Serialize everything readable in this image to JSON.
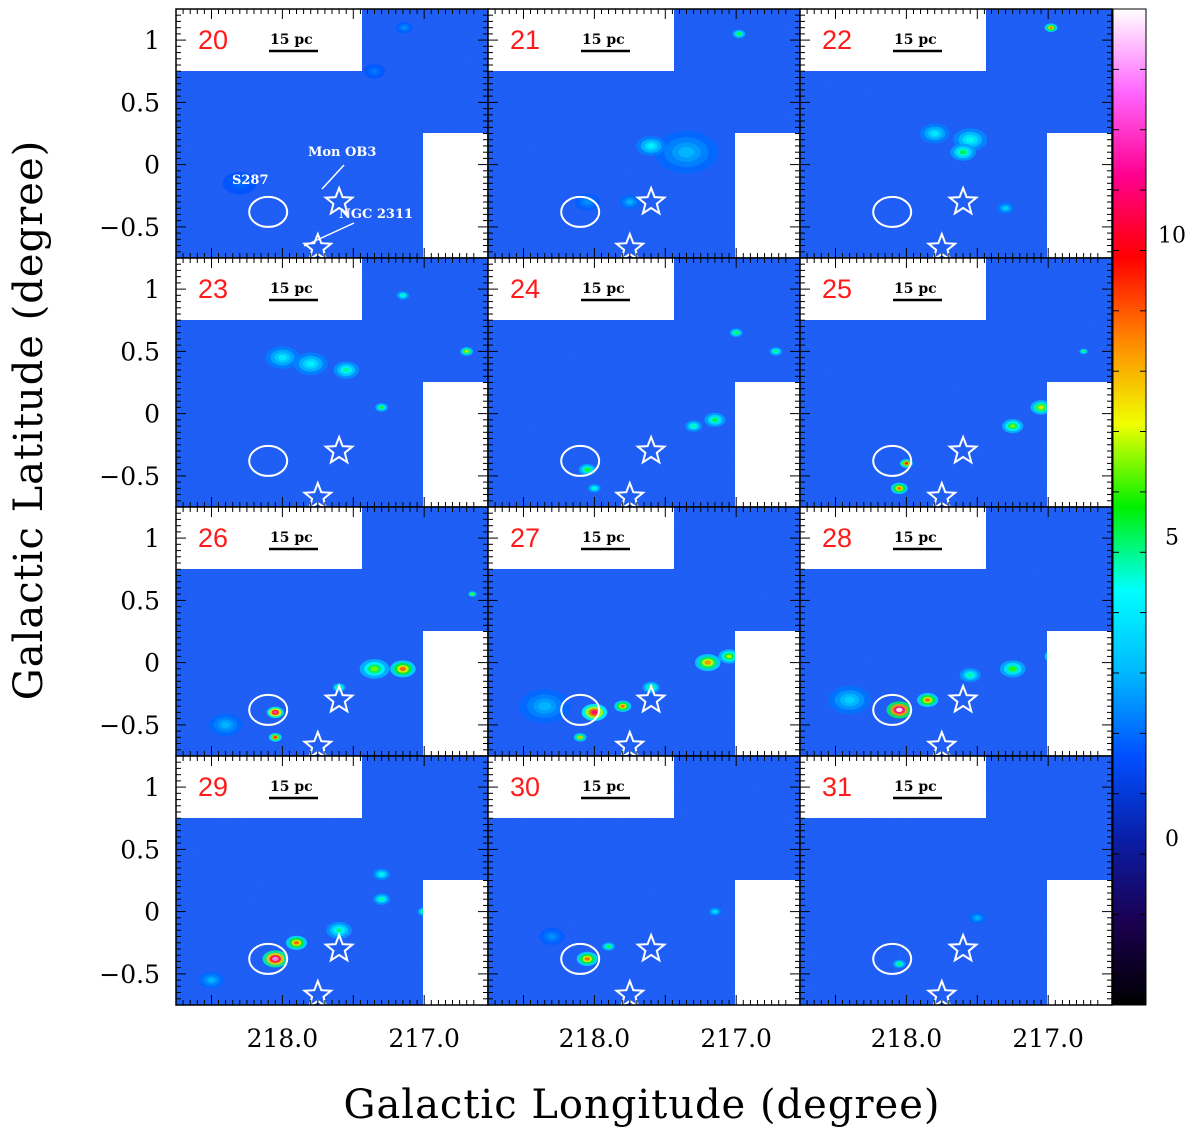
{
  "chart_data": {
    "type": "heatmap",
    "description_type": "channel-map grid (4x3 panels)",
    "xlabel": "Galactic Longitude (degree)",
    "ylabel": "Galactic Latitude (degree)",
    "xlim": [
      218.75,
      216.55
    ],
    "ylim": [
      -0.75,
      1.25
    ],
    "x_ticks": [
      218.0,
      217.0
    ],
    "x_tick_labels": [
      "218.0",
      "217.0"
    ],
    "y_ticks": [
      1.0,
      0.5,
      0.0,
      -0.5
    ],
    "y_tick_labels": [
      "1",
      "0.5",
      "0",
      "−0.5"
    ],
    "colorbar": {
      "range": [
        -2.5,
        14
      ],
      "ticks": [
        0,
        5,
        10
      ],
      "tick_labels": [
        "0",
        "5",
        "10"
      ],
      "colors": [
        "#000000",
        "#1a0050",
        "#0a1ea8",
        "#0050ff",
        "#00b8ff",
        "#00ffff",
        "#00f000",
        "#f0ff00",
        "#ff8800",
        "#ff0000",
        "#ff0090",
        "#ff66ff",
        "#ffffff"
      ]
    },
    "panels": [
      {
        "label": "20",
        "scale_bar": "15 pc"
      },
      {
        "label": "21",
        "scale_bar": "15 pc"
      },
      {
        "label": "22",
        "scale_bar": "15 pc"
      },
      {
        "label": "23",
        "scale_bar": "15 pc"
      },
      {
        "label": "24",
        "scale_bar": "15 pc"
      },
      {
        "label": "25",
        "scale_bar": "15 pc"
      },
      {
        "label": "26",
        "scale_bar": "15 pc"
      },
      {
        "label": "27",
        "scale_bar": "15 pc"
      },
      {
        "label": "28",
        "scale_bar": "15 pc"
      },
      {
        "label": "29",
        "scale_bar": "15 pc"
      },
      {
        "label": "30",
        "scale_bar": "15 pc"
      },
      {
        "label": "31",
        "scale_bar": "15 pc"
      }
    ],
    "markers": {
      "ellipse": {
        "name": "S287",
        "l": 218.1,
        "b": -0.38
      },
      "stars": [
        {
          "name": "Mon OB3",
          "l": 217.6,
          "b": -0.3
        },
        {
          "name": "NGC 2311",
          "l": 217.75,
          "b": -0.67
        }
      ]
    },
    "annotations": [
      "S287",
      "Mon OB3",
      "NGC 2311"
    ],
    "emission": [
      [
        [
          217.14,
          1.1,
          0.04,
          2.5
        ],
        [
          217.35,
          0.75,
          0.05,
          2.2
        ],
        [
          218.3,
          -0.15,
          0.08,
          2.0
        ]
      ],
      [
        [
          217.35,
          0.1,
          0.15,
          3.0
        ],
        [
          217.6,
          0.15,
          0.07,
          4.2
        ],
        [
          216.98,
          1.05,
          0.03,
          6.0
        ],
        [
          217.75,
          -0.3,
          0.05,
          3.0
        ],
        [
          218.05,
          -0.3,
          0.06,
          2.5
        ]
      ],
      [
        [
          217.8,
          0.25,
          0.07,
          4.0
        ],
        [
          217.55,
          0.2,
          0.08,
          4.5
        ],
        [
          217.6,
          0.1,
          0.06,
          5.5
        ],
        [
          216.98,
          1.1,
          0.03,
          9.0
        ],
        [
          217.3,
          -0.35,
          0.04,
          3.5
        ]
      ],
      [
        [
          218.0,
          0.45,
          0.08,
          4.0
        ],
        [
          217.8,
          0.4,
          0.08,
          4.2
        ],
        [
          217.55,
          0.35,
          0.06,
          5.0
        ],
        [
          217.3,
          0.05,
          0.03,
          6.0
        ],
        [
          216.7,
          0.5,
          0.03,
          7.5
        ],
        [
          217.15,
          0.95,
          0.03,
          5.0
        ]
      ],
      [
        [
          217.3,
          -0.1,
          0.04,
          5.0
        ],
        [
          217.15,
          -0.05,
          0.05,
          5.5
        ],
        [
          218.05,
          -0.45,
          0.04,
          6.0
        ],
        [
          218.0,
          -0.6,
          0.03,
          5.0
        ],
        [
          217.0,
          0.65,
          0.03,
          6.0
        ],
        [
          216.72,
          0.5,
          0.03,
          5.5
        ]
      ],
      [
        [
          217.25,
          -0.1,
          0.05,
          6.5
        ],
        [
          217.05,
          0.05,
          0.05,
          7.5
        ],
        [
          218.0,
          -0.4,
          0.03,
          10.0
        ],
        [
          218.05,
          -0.6,
          0.04,
          9.0
        ],
        [
          216.75,
          0.5,
          0.02,
          6.0
        ],
        [
          216.85,
          0.05,
          0.04,
          5.0
        ]
      ],
      [
        [
          217.35,
          -0.05,
          0.07,
          6.5
        ],
        [
          217.15,
          -0.05,
          0.06,
          9.0
        ],
        [
          218.05,
          -0.4,
          0.04,
          12.0
        ],
        [
          218.05,
          -0.6,
          0.03,
          10.0
        ],
        [
          217.6,
          -0.2,
          0.03,
          6.5
        ],
        [
          218.4,
          -0.5,
          0.08,
          3.0
        ],
        [
          216.66,
          0.55,
          0.02,
          7.0
        ]
      ],
      [
        [
          218.0,
          -0.4,
          0.06,
          11.0
        ],
        [
          217.8,
          -0.35,
          0.04,
          9.0
        ],
        [
          217.2,
          0.0,
          0.06,
          8.5
        ],
        [
          217.05,
          0.05,
          0.05,
          7.0
        ],
        [
          218.1,
          -0.6,
          0.03,
          8.0
        ],
        [
          217.6,
          -0.2,
          0.04,
          6.0
        ],
        [
          218.35,
          -0.35,
          0.12,
          3.0
        ]
      ],
      [
        [
          218.05,
          -0.38,
          0.06,
          14.0
        ],
        [
          217.85,
          -0.3,
          0.05,
          9.0
        ],
        [
          217.25,
          -0.05,
          0.06,
          6.0
        ],
        [
          216.95,
          0.05,
          0.05,
          8.5
        ],
        [
          218.4,
          -0.3,
          0.1,
          3.5
        ],
        [
          217.55,
          -0.1,
          0.05,
          5.0
        ]
      ],
      [
        [
          218.05,
          -0.38,
          0.06,
          13.0
        ],
        [
          217.9,
          -0.25,
          0.05,
          9.0
        ],
        [
          217.6,
          -0.15,
          0.06,
          5.0
        ],
        [
          217.3,
          0.1,
          0.04,
          5.0
        ],
        [
          217.0,
          0.0,
          0.03,
          6.0
        ],
        [
          216.85,
          0.1,
          0.04,
          7.0
        ],
        [
          217.3,
          0.3,
          0.04,
          4.5
        ],
        [
          218.5,
          -0.55,
          0.06,
          3.0
        ]
      ],
      [
        [
          218.05,
          -0.38,
          0.05,
          9.0
        ],
        [
          217.9,
          -0.28,
          0.03,
          6.0
        ],
        [
          217.15,
          0.0,
          0.03,
          4.0
        ],
        [
          218.3,
          -0.2,
          0.06,
          2.5
        ]
      ],
      [
        [
          218.05,
          -0.42,
          0.03,
          5.5
        ],
        [
          217.5,
          -0.05,
          0.04,
          3.0
        ]
      ]
    ]
  }
}
